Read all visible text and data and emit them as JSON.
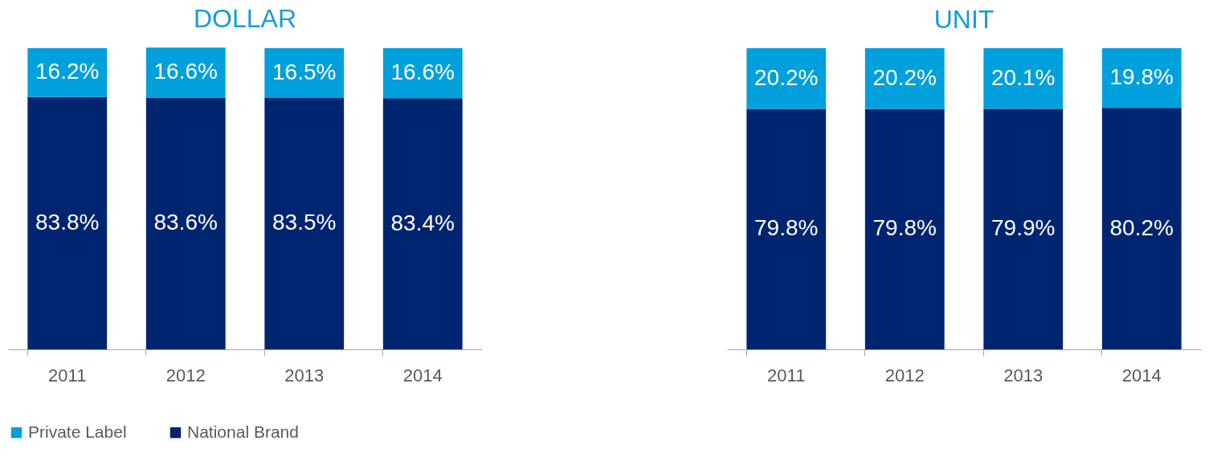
{
  "chart_data": [
    {
      "type": "bar",
      "title": "DOLLAR",
      "categories": [
        "2011",
        "2012",
        "2013",
        "2014"
      ],
      "stacked": true,
      "legend": "bottom",
      "series": [
        {
          "name": "National Brand",
          "color": "#002570",
          "values": [
            83.8,
            83.6,
            83.5,
            83.4
          ],
          "value_labels": [
            "83.8%",
            "83.6%",
            "83.5%",
            "83.4%"
          ]
        },
        {
          "name": "Private Label",
          "color": "#00a0dc",
          "values": [
            16.2,
            16.6,
            16.5,
            16.6
          ],
          "value_labels": [
            "16.2%",
            "16.6%",
            "16.5%",
            "16.6%"
          ]
        }
      ]
    },
    {
      "type": "bar",
      "title": "UNIT",
      "categories": [
        "2011",
        "2012",
        "2013",
        "2014"
      ],
      "stacked": true,
      "legend": "bottom",
      "series": [
        {
          "name": "National Brand",
          "color": "#002570",
          "values": [
            79.8,
            79.8,
            79.9,
            80.2
          ],
          "value_labels": [
            "79.8%",
            "79.8%",
            "79.9%",
            "80.2%"
          ]
        },
        {
          "name": "Private Label",
          "color": "#00a0dc",
          "values": [
            20.2,
            20.2,
            20.1,
            19.8
          ],
          "value_labels": [
            "20.2%",
            "20.2%",
            "20.1%",
            "19.8%"
          ]
        }
      ]
    }
  ]
}
